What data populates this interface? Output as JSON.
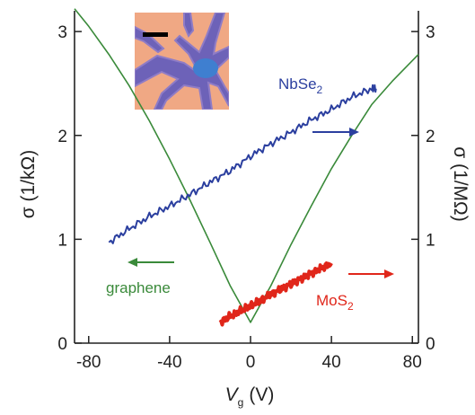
{
  "chart_data": {
    "type": "line",
    "xlabel": "V",
    "xlabel_sub": "g",
    "xlabel_unit": "(V)",
    "ylabel_left": "σ (1/kΩ)",
    "ylabel_right": "σ (1/MΩ)",
    "xlim": [
      -87,
      83
    ],
    "ylim": [
      0,
      3.2
    ],
    "x_ticks": [
      -80,
      -40,
      0,
      40,
      80
    ],
    "y_ticks": [
      0,
      1,
      2,
      3
    ],
    "y_ticks_right": [
      0,
      1,
      2,
      3
    ],
    "grid": false,
    "legend": "none",
    "colors": {
      "graphene": "#3a8a3a",
      "nbse2": "#2b3f9f",
      "mos2": "#e0261a",
      "axis": "#222222",
      "inset_bg": "#f0a884",
      "inset_flake": "#6d62b8",
      "inset_flake_light": "#8f7cc6",
      "inset_center": "#3f7fd0"
    },
    "inset": {
      "description_icon": "optical-micrograph-inset"
    },
    "series": [
      {
        "name": "graphene",
        "axis": "left",
        "arrow_direction": "left",
        "label_parts": [
          "graphene",
          ""
        ],
        "x": [
          -87,
          -80,
          -70,
          -60,
          -50,
          -40,
          -30,
          -20,
          -10,
          0,
          10,
          20,
          30,
          40,
          50,
          60,
          70,
          83
        ],
        "y": [
          3.22,
          3.05,
          2.78,
          2.48,
          2.14,
          1.77,
          1.38,
          0.97,
          0.55,
          0.2,
          0.55,
          0.95,
          1.32,
          1.68,
          2.0,
          2.3,
          2.52,
          2.78
        ]
      },
      {
        "name": "NbSe2",
        "axis": "right",
        "arrow_direction": "right",
        "label_parts": [
          "NbSe",
          "2"
        ],
        "x": [
          -70,
          -60,
          -50,
          -40,
          -30,
          -20,
          -10,
          0,
          10,
          20,
          30,
          40,
          50,
          60,
          62
        ],
        "y": [
          0.97,
          1.1,
          1.22,
          1.32,
          1.43,
          1.55,
          1.66,
          1.8,
          1.92,
          2.03,
          2.15,
          2.25,
          2.37,
          2.45,
          2.45
        ]
      },
      {
        "name": "MoS2",
        "axis": "right",
        "arrow_direction": "right",
        "label_parts": [
          "MoS",
          "2"
        ],
        "x": [
          -15,
          -10,
          -5,
          0,
          5,
          10,
          15,
          20,
          25,
          30,
          35,
          40
        ],
        "y": [
          0.2,
          0.26,
          0.31,
          0.36,
          0.41,
          0.47,
          0.52,
          0.57,
          0.62,
          0.67,
          0.72,
          0.77
        ]
      }
    ]
  }
}
